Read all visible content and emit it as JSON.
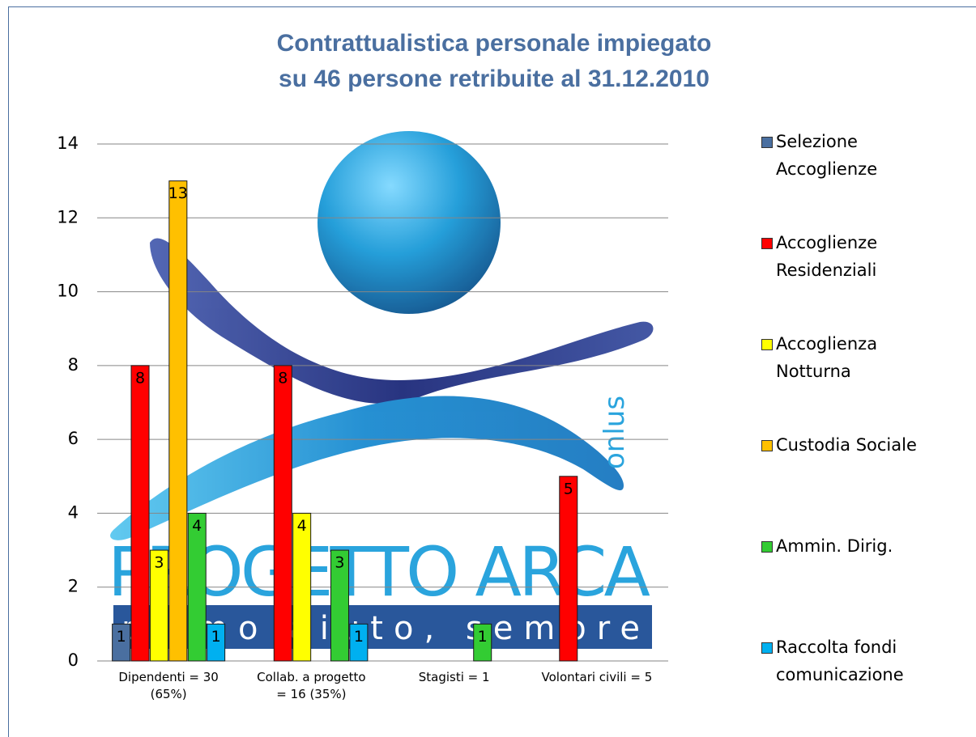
{
  "chart_data": {
    "type": "bar",
    "title": "Contrattualistica personale impiegato su 46 persone retribuite al 31.12.2010",
    "categories": [
      "Dipendenti  = 30 (65%)",
      "Collab. a progetto = 16  (35%)",
      "Stagisti = 1",
      "Volontari civili = 5"
    ],
    "series": [
      {
        "name": "Selezione Accoglienze",
        "color": "#4a6fa0",
        "values": [
          1,
          null,
          null,
          null
        ]
      },
      {
        "name": "Accoglienze Residenziali",
        "color": "#ff0000",
        "values": [
          8,
          8,
          null,
          5
        ]
      },
      {
        "name": "Accoglienza Notturna",
        "color": "#ffff00",
        "values": [
          3,
          4,
          null,
          null
        ]
      },
      {
        "name": "Custodia Sociale",
        "color": "#ffc000",
        "values": [
          13,
          null,
          null,
          null
        ]
      },
      {
        "name": "Ammin. Dirig.",
        "color": "#33cc33",
        "values": [
          4,
          3,
          1,
          null
        ]
      },
      {
        "name": "Raccolta fondi comunicazione",
        "color": "#00b0f0",
        "values": [
          1,
          1,
          null,
          null
        ]
      }
    ],
    "ylim": [
      0,
      14
    ],
    "yticks": [
      0,
      2,
      4,
      6,
      8,
      10,
      12,
      14
    ],
    "grid": true,
    "data_labels": true,
    "legend": "right",
    "watermark": {
      "name": "PROGETTO ARCA",
      "tagline": "primo aiuto, sempre",
      "suffix": "onlus"
    }
  }
}
